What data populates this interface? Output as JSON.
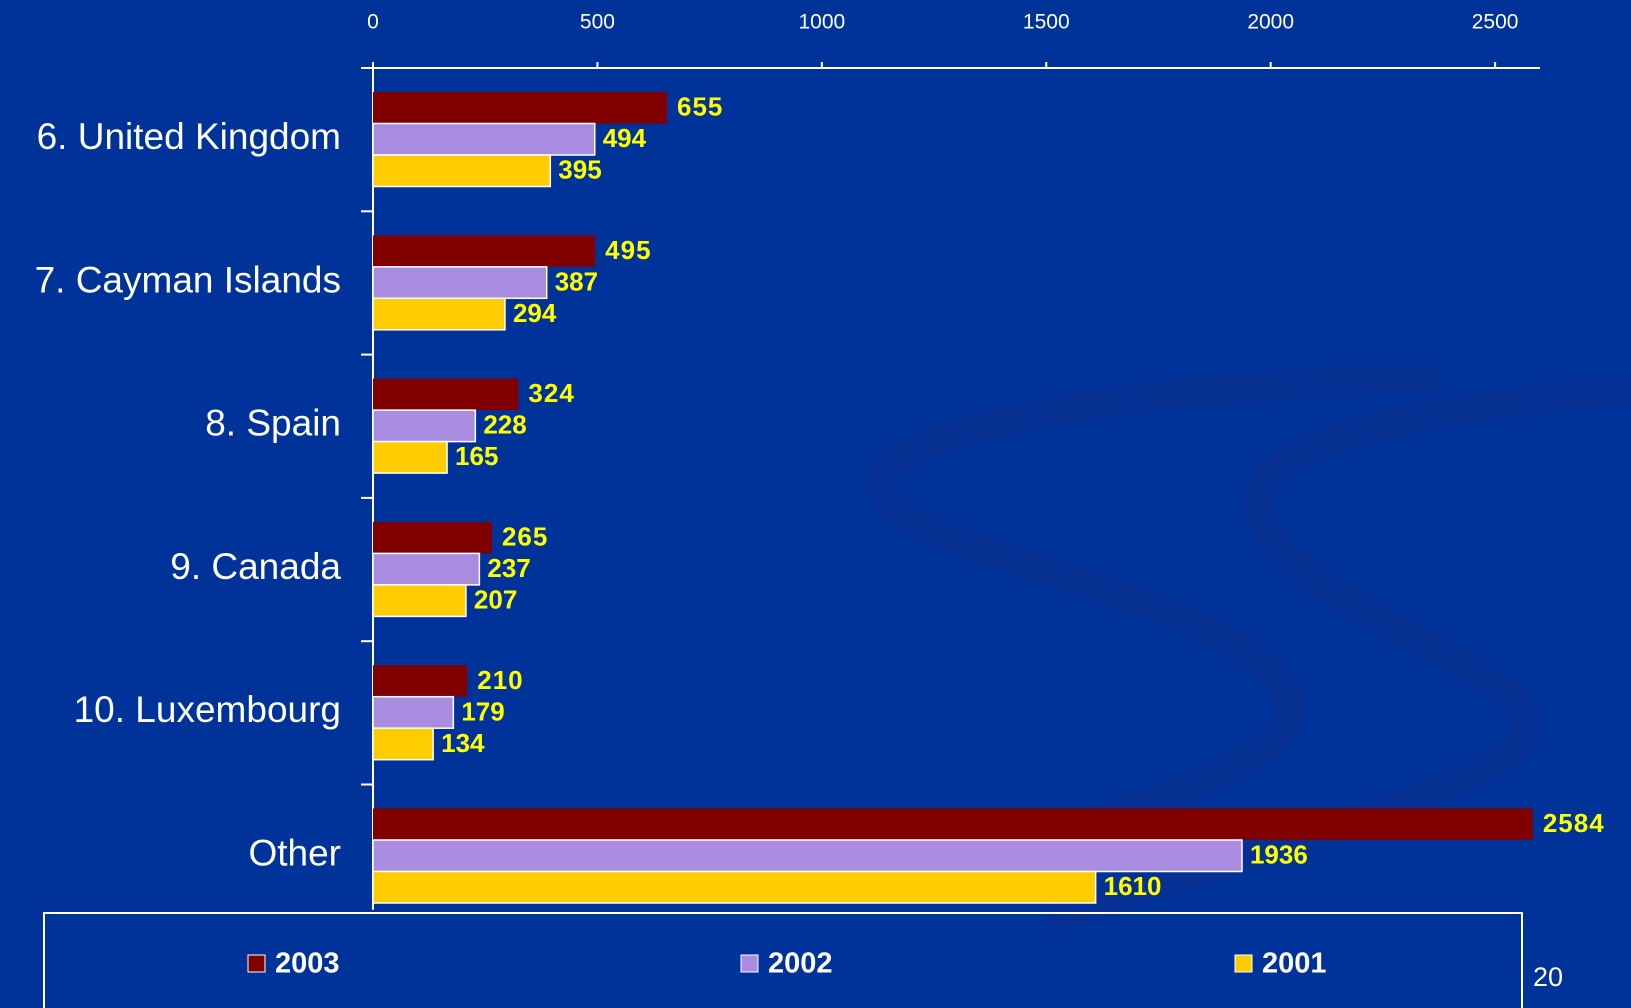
{
  "chart_data": {
    "type": "bar",
    "orientation": "horizontal",
    "categories": [
      "6. United Kingdom",
      "7. Cayman Islands",
      "8. Spain",
      "9. Canada",
      "10. Luxembourg",
      "Other"
    ],
    "series": [
      {
        "name": "2003",
        "color": "#800000",
        "values": [
          655,
          495,
          324,
          265,
          210,
          2584
        ]
      },
      {
        "name": "2002",
        "color": "#a98be0",
        "values": [
          494,
          387,
          228,
          237,
          179,
          1936
        ]
      },
      {
        "name": "2001",
        "color": "#ffcc00",
        "values": [
          395,
          294,
          165,
          207,
          134,
          1610
        ]
      }
    ],
    "xlim": [
      0,
      2600
    ],
    "xticks": [
      0,
      500,
      1000,
      1500,
      2000,
      2500
    ],
    "legend": "bottom"
  },
  "page_number": "20"
}
